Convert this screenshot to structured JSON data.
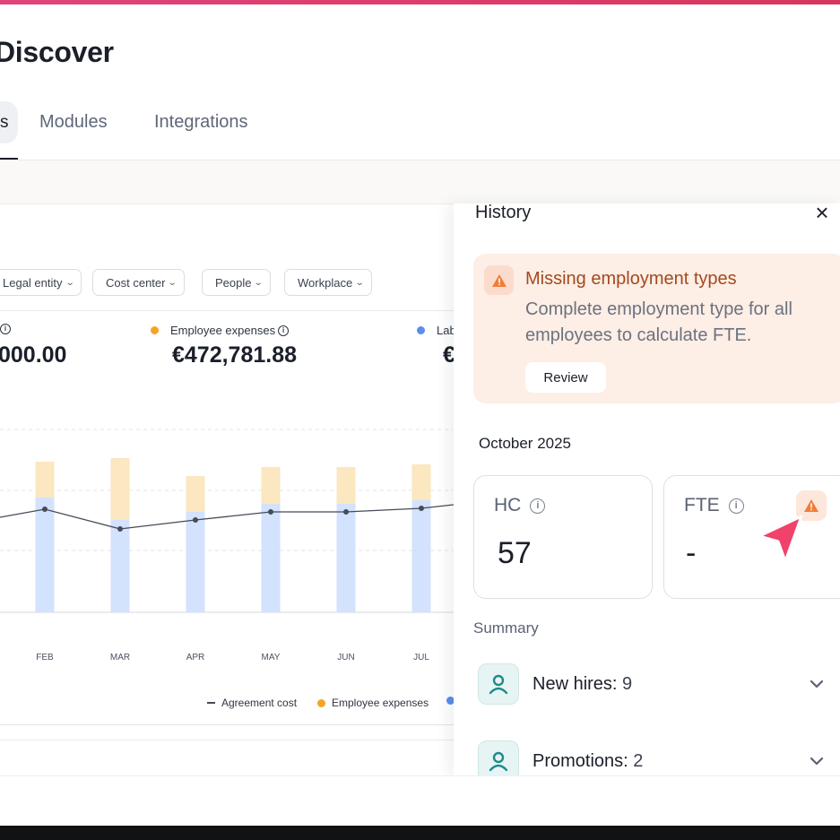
{
  "page": {
    "title": "Discover"
  },
  "tabs": {
    "active_fragment": "s",
    "modules": "Modules",
    "integrations": "Integrations"
  },
  "filters": [
    {
      "label": "Legal entity"
    },
    {
      "label": "Cost center"
    },
    {
      "label": "People"
    },
    {
      "label": "Workplace"
    }
  ],
  "kpis": {
    "first": {
      "value": "000.00"
    },
    "employee_expenses": {
      "label": "Employee expenses",
      "value": "€472,781.88",
      "color": "#f5a524"
    },
    "labor": {
      "label": "Lab",
      "value": "€",
      "color": "#5b8def"
    }
  },
  "chart_data": {
    "type": "bar",
    "categories": [
      "FEB",
      "MAR",
      "APR",
      "MAY",
      "JUN",
      "JUL"
    ],
    "series": [
      {
        "name": "Employee expenses",
        "values": [
          40,
          69,
          40,
          41,
          41,
          40
        ],
        "color": "#fbe7c0"
      },
      {
        "name": "Labor",
        "values": [
          128,
          103,
          112,
          121,
          121,
          125
        ],
        "color": "#d3e2fd"
      },
      {
        "name": "Agreement cost",
        "values": [
          115,
          93,
          103,
          112,
          112,
          116
        ],
        "color": "#454b58"
      }
    ],
    "legend": [
      {
        "label": "Agreement cost",
        "marker": "line",
        "color": "#454b58"
      },
      {
        "label": "Employee expenses",
        "marker": "dot",
        "color": "#f5a524"
      },
      {
        "label": "",
        "marker": "dot",
        "color": "#5b8def"
      }
    ],
    "legend_position": "bottom",
    "grid": true
  },
  "history": {
    "title": "History",
    "alert": {
      "title": "Missing employment types",
      "text": "Complete employment type for all employees to calculate FTE.",
      "button": "Review"
    },
    "period": "October 2025",
    "hc": {
      "label": "HC",
      "value": "57"
    },
    "fte": {
      "label": "FTE",
      "value": "-"
    },
    "summary_label": "Summary",
    "rows": [
      {
        "label": "New hires:",
        "count": "9"
      },
      {
        "label": "Promotions:",
        "count": "2"
      }
    ]
  },
  "colors": {
    "accent": "#e0457b",
    "warning": "#f07d3a",
    "teal": "#1f8a8a"
  }
}
